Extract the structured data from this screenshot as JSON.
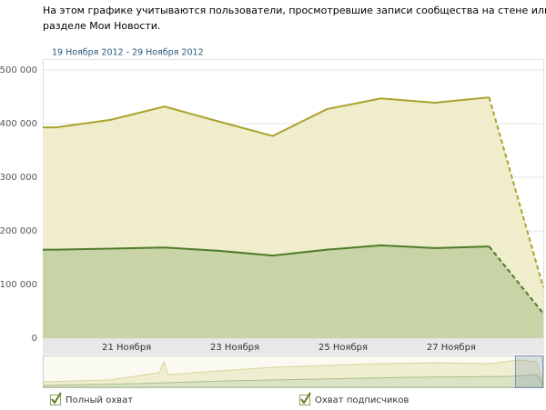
{
  "description_lines": [
    "На этом графике учитываются пользователи, просмотревшие записи сообщества на стене или в",
    "разделе Мои Новости."
  ],
  "chart_data": {
    "type": "area",
    "date_range": "19 Ноября 2012 - 29 Ноября 2012",
    "x": [
      19.75,
      20,
      21,
      22,
      23,
      24,
      25,
      26,
      27,
      28,
      29
    ],
    "series": [
      {
        "name": "Полный охват",
        "color": "#aaa32b",
        "fill": "#efedcb",
        "values": [
          393000,
          393000,
          407000,
          432000,
          404000,
          377000,
          427000,
          447000,
          439000,
          449000,
          95000
        ]
      },
      {
        "name": "Охват подписчиков",
        "color": "#4f7b2a",
        "fill": "#c8d3a6",
        "values": [
          165000,
          165000,
          167000,
          169000,
          163000,
          154000,
          165000,
          173000,
          168000,
          171000,
          46000
        ]
      }
    ],
    "xlim": [
      19.75,
      29
    ],
    "xticks": [
      {
        "value": 21.3,
        "label": "21 Ноября"
      },
      {
        "value": 23.3,
        "label": "23 Ноября"
      },
      {
        "value": 25.3,
        "label": "25 Ноября"
      },
      {
        "value": 27.3,
        "label": "27 Ноября"
      }
    ],
    "ylim": [
      0,
      500000
    ],
    "yticks": [
      0,
      {
        "value": 100000,
        "label": "100 000"
      },
      {
        "value": 200000,
        "label": "200 000"
      },
      {
        "value": 300000,
        "label": "300 000"
      },
      {
        "value": 400000,
        "label": "400 000"
      },
      {
        "value": 500000,
        "label": "500 000"
      }
    ],
    "grid": true,
    "dashed_last_segment": true
  }
}
